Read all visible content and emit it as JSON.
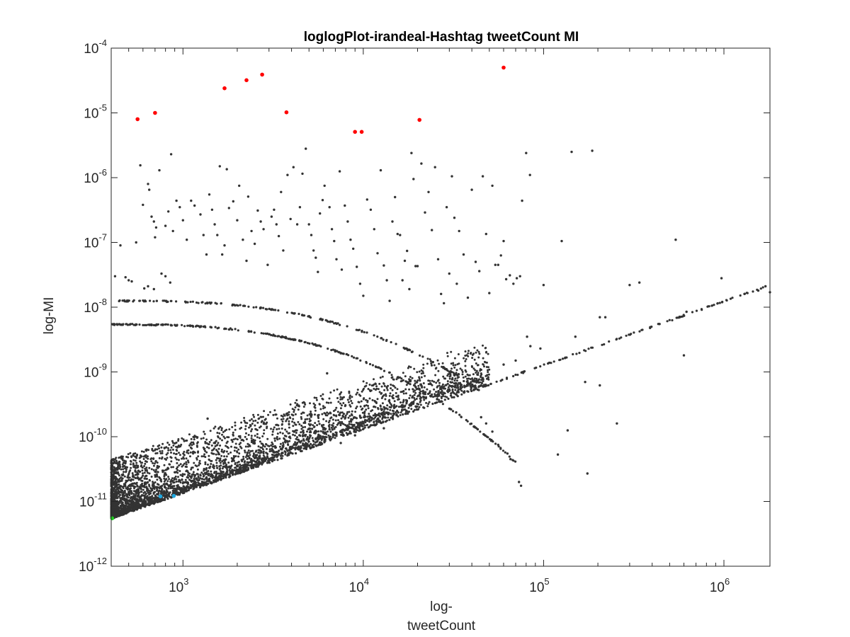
{
  "chart_data": {
    "type": "scatter",
    "title": "loglogPlot-irandeal-Hashtag tweetCount MI",
    "xlabel": [
      "log-",
      "tweetCount"
    ],
    "ylabel": "log-MI",
    "xscale": "log",
    "yscale": "log",
    "xlim": [
      400,
      1800000
    ],
    "ylim": [
      1e-12,
      0.0001
    ],
    "xticks": [
      {
        "value": 1000,
        "base": "10",
        "exp": "3"
      },
      {
        "value": 10000,
        "base": "10",
        "exp": "4"
      },
      {
        "value": 100000,
        "base": "10",
        "exp": "5"
      },
      {
        "value": 1000000,
        "base": "10",
        "exp": "6"
      }
    ],
    "yticks": [
      {
        "value": 1e-12,
        "base": "10",
        "exp": "-12"
      },
      {
        "value": 1e-11,
        "base": "10",
        "exp": "-11"
      },
      {
        "value": 1e-10,
        "base": "10",
        "exp": "-10"
      },
      {
        "value": 1e-09,
        "base": "10",
        "exp": "-9"
      },
      {
        "value": 1e-08,
        "base": "10",
        "exp": "-8"
      },
      {
        "value": 1e-07,
        "base": "10",
        "exp": "-7"
      },
      {
        "value": 1e-06,
        "base": "10",
        "exp": "-6"
      },
      {
        "value": 1e-05,
        "base": "10",
        "exp": "-5"
      },
      {
        "value": 0.0001,
        "base": "10",
        "exp": "-4"
      }
    ],
    "grid": false,
    "legend": "none",
    "series": [
      {
        "role": "highlight-red",
        "color": "#ff0000",
        "points": [
          [
            560,
            8e-06
          ],
          [
            700,
            1e-05
          ],
          [
            1700,
            2.4e-05
          ],
          [
            2250,
            3.2e-05
          ],
          [
            2750,
            3.9e-05
          ],
          [
            3750,
            1.02e-05
          ],
          [
            9000,
            5.1e-06
          ],
          [
            9800,
            5.1e-06
          ],
          [
            20500,
            7.8e-06
          ],
          [
            60000,
            5e-05
          ]
        ]
      },
      {
        "role": "highlight-blue",
        "color": "#1fa8e0",
        "points": [
          [
            750,
            1.2e-11
          ],
          [
            890,
            1.22e-11
          ]
        ]
      },
      {
        "role": "highlight-green",
        "color": "#22cc22",
        "points": [
          [
            405,
            5.5e-12
          ]
        ]
      },
      {
        "role": "scattered-points",
        "color": "#333333",
        "points": [
          [
            580,
            1.55e-06
          ],
          [
            600,
            3.8e-07
          ],
          [
            640,
            8e-07
          ],
          [
            650,
            6.5e-07
          ],
          [
            670,
            2.5e-07
          ],
          [
            690,
            2.1e-07
          ],
          [
            710,
            1.7e-07
          ],
          [
            740,
            1.3e-06
          ],
          [
            860,
            2.3e-06
          ],
          [
            760,
            3.3e-08
          ],
          [
            800,
            1.8e-07
          ],
          [
            830,
            3e-07
          ],
          [
            880,
            1.5e-07
          ],
          [
            920,
            4.4e-07
          ],
          [
            960,
            3.5e-07
          ],
          [
            1000,
            2.2e-07
          ],
          [
            1050,
            1.1e-07
          ],
          [
            1110,
            4.4e-07
          ],
          [
            1160,
            3.7e-07
          ],
          [
            1250,
            2.7e-07
          ],
          [
            1300,
            1.3e-07
          ],
          [
            1350,
            6.5e-08
          ],
          [
            1400,
            5.5e-07
          ],
          [
            1450,
            3.2e-07
          ],
          [
            1500,
            1.9e-07
          ],
          [
            1550,
            1.3e-07
          ],
          [
            1600,
            1.5e-06
          ],
          [
            1650,
            6.5e-08
          ],
          [
            1700,
            9e-08
          ],
          [
            1750,
            1.35e-06
          ],
          [
            1800,
            3.4e-07
          ],
          [
            1900,
            4.3e-07
          ],
          [
            2000,
            2.2e-07
          ],
          [
            2050,
            7.5e-07
          ],
          [
            2150,
            1.1e-07
          ],
          [
            2250,
            5.2e-08
          ],
          [
            2300,
            5.1e-07
          ],
          [
            2400,
            1.5e-07
          ],
          [
            2500,
            9.5e-08
          ],
          [
            2600,
            3.1e-07
          ],
          [
            2700,
            2.1e-07
          ],
          [
            2800,
            1.6e-07
          ],
          [
            2950,
            4.5e-08
          ],
          [
            3100,
            2.5e-07
          ],
          [
            3200,
            3.2e-07
          ],
          [
            3300,
            1.9e-07
          ],
          [
            3400,
            1.25e-07
          ],
          [
            3500,
            6e-07
          ],
          [
            3600,
            7.5e-08
          ],
          [
            3800,
            1.1e-06
          ],
          [
            3950,
            2.3e-07
          ],
          [
            4100,
            1.45e-06
          ],
          [
            4300,
            1.9e-07
          ],
          [
            4450,
            3.5e-07
          ],
          [
            4600,
            1.15e-06
          ],
          [
            4800,
            2.8e-06
          ],
          [
            5000,
            1.9e-07
          ],
          [
            5150,
            1.3e-07
          ],
          [
            5300,
            7.5e-08
          ],
          [
            5450,
            5.8e-08
          ],
          [
            5600,
            3.5e-08
          ],
          [
            5750,
            2.8e-07
          ],
          [
            5950,
            4.5e-07
          ],
          [
            6100,
            7.5e-07
          ],
          [
            6300,
            9.5e-10
          ],
          [
            6500,
            3.5e-07
          ],
          [
            6700,
            1.6e-07
          ],
          [
            6900,
            1.05e-07
          ],
          [
            7100,
            5.5e-08
          ],
          [
            7400,
            1.25e-06
          ],
          [
            7600,
            3.8e-08
          ],
          [
            7900,
            3.7e-07
          ],
          [
            8200,
            2.1e-07
          ],
          [
            8500,
            1.1e-07
          ],
          [
            8800,
            8e-08
          ],
          [
            9200,
            4.2e-08
          ],
          [
            9600,
            2.3e-08
          ],
          [
            10000,
            1.5e-08
          ],
          [
            10500,
            4.6e-07
          ],
          [
            11000,
            3.2e-07
          ],
          [
            11500,
            1.6e-07
          ],
          [
            12000,
            6.8e-08
          ],
          [
            12500,
            1.3e-06
          ],
          [
            13000,
            4.4e-08
          ],
          [
            13500,
            2.6e-08
          ],
          [
            14000,
            1.25e-08
          ],
          [
            14500,
            2.1e-07
          ],
          [
            15000,
            5e-07
          ],
          [
            15500,
            1.35e-07
          ],
          [
            16000,
            1.3e-07
          ],
          [
            16500,
            2.6e-08
          ],
          [
            17000,
            5.2e-08
          ],
          [
            17500,
            7.4e-08
          ],
          [
            18000,
            1.9e-08
          ],
          [
            18500,
            2.4e-06
          ],
          [
            19000,
            9.5e-07
          ],
          [
            19500,
            4.3e-08
          ],
          [
            20000,
            4.3e-08
          ],
          [
            21000,
            1.65e-06
          ],
          [
            22000,
            2.9e-07
          ],
          [
            23000,
            6e-07
          ],
          [
            24000,
            1.55e-07
          ],
          [
            25000,
            1.45e-06
          ],
          [
            26000,
            5.5e-08
          ],
          [
            27000,
            1.6e-08
          ],
          [
            28000,
            1.15e-08
          ],
          [
            29000,
            3.5e-07
          ],
          [
            30000,
            3.3e-08
          ],
          [
            31000,
            1.05e-06
          ],
          [
            32000,
            2.4e-07
          ],
          [
            33000,
            2.3e-08
          ],
          [
            34000,
            1.5e-07
          ],
          [
            36000,
            6.5e-08
          ],
          [
            38000,
            1.4e-08
          ],
          [
            40000,
            6.5e-07
          ],
          [
            42000,
            5e-08
          ],
          [
            44000,
            3.6e-08
          ],
          [
            46000,
            1.05e-06
          ],
          [
            48000,
            1.35e-07
          ],
          [
            50000,
            1.65e-08
          ],
          [
            52000,
            7.5e-07
          ],
          [
            54000,
            4.5e-08
          ],
          [
            56000,
            4.5e-08
          ],
          [
            58000,
            6.3e-08
          ],
          [
            60000,
            1.05e-07
          ],
          [
            62000,
            2.7e-08
          ],
          [
            65000,
            3.1e-08
          ],
          [
            68000,
            2.3e-08
          ],
          [
            71000,
            2.8e-08
          ],
          [
            74000,
            3e-08
          ],
          [
            76000,
            4.4e-07
          ],
          [
            80000,
            2.4e-06
          ],
          [
            84000,
            1.1e-06
          ],
          [
            126000,
            1.05e-07
          ],
          [
            143000,
            2.5e-06
          ],
          [
            186000,
            2.6e-06
          ],
          [
            100000,
            2.2e-08
          ],
          [
            205000,
            7e-09
          ],
          [
            300000,
            2.2e-08
          ],
          [
            340000,
            2.4e-08
          ],
          [
            540000,
            1.1e-07
          ],
          [
            970000,
            2.8e-08
          ],
          [
            81000,
            3.5e-09
          ],
          [
            96000,
            2.3e-09
          ],
          [
            84500,
            2.5e-09
          ],
          [
            70000,
            1.5e-09
          ],
          [
            60000,
            1.3e-09
          ],
          [
            150000,
            3.5e-09
          ],
          [
            175000,
            2.7e-11
          ],
          [
            220000,
            7e-09
          ],
          [
            63000,
            5.5e-11
          ],
          [
            65500,
            4.5e-11
          ],
          [
            73000,
            2e-11
          ],
          [
            75000,
            1.75e-11
          ],
          [
            120000,
            5.3e-11
          ],
          [
            136000,
            1.25e-10
          ],
          [
            255000,
            1.6e-10
          ],
          [
            205000,
            6.2e-10
          ],
          [
            170000,
            7e-10
          ],
          [
            600000,
            1.8e-09
          ],
          [
            440000,
            5.5e-09
          ],
          [
            620000,
            8.5e-09
          ],
          [
            1300000,
            1.6e-08
          ],
          [
            1550000,
            1.8e-08
          ],
          [
            1700000,
            2.1e-08
          ],
          [
            1800000,
            1.7e-08
          ],
          [
            48000,
            1.6e-10
          ],
          [
            52000,
            1.2e-10
          ],
          [
            56000,
            7.5e-11
          ],
          [
            45000,
            2e-10
          ],
          [
            1370,
            1.9e-10
          ],
          [
            4650,
            1.15e-10
          ],
          [
            5500,
            1.2e-10
          ],
          [
            6500,
            1.3e-10
          ],
          [
            7500,
            8e-11
          ],
          [
            9000,
            1.05e-10
          ],
          [
            11000,
            1.5e-10
          ],
          [
            13000,
            1.35e-10
          ],
          [
            500,
            2.6e-08
          ],
          [
            700,
            1.2e-07
          ],
          [
            450,
            9e-08
          ],
          [
            550,
            1e-07
          ],
          [
            420,
            3e-08
          ],
          [
            480,
            2.9e-08
          ],
          [
            520,
            2.5e-08
          ],
          [
            610,
            1.95e-08
          ],
          [
            690,
            1.9e-08
          ],
          [
            640,
            2.1e-08
          ],
          [
            800,
            3e-08
          ],
          [
            850,
            2.4e-08
          ]
        ]
      }
    ],
    "structured_series": [
      {
        "name": "upper-band",
        "color": "#333333",
        "x_range": [
          400,
          45000
        ],
        "y_range": [
          1.25e-08,
          5e-10
        ],
        "count": 170
      },
      {
        "name": "lower-band",
        "color": "#333333",
        "x_range": [
          400,
          70000
        ],
        "y_range": [
          5.4e-09,
          4e-11
        ],
        "count": 260
      },
      {
        "name": "baseline-line",
        "color": "#333333",
        "x_range": [
          400,
          1800000
        ],
        "y_range": [
          5.5e-12,
          2.2e-08
        ],
        "count": 320
      },
      {
        "name": "dense-cloud",
        "color": "#333333",
        "x_range": [
          400,
          50000
        ],
        "y_range": [
          5.5e-12,
          3e-10
        ],
        "count": 4200
      }
    ]
  }
}
